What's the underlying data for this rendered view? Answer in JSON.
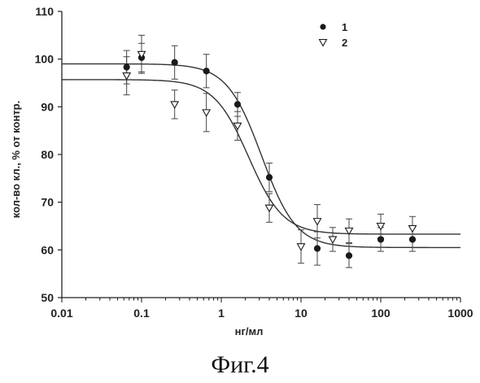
{
  "caption": "Фиг.4",
  "chart_data": {
    "type": "scatter",
    "title": "",
    "xlabel": "нг/мл",
    "ylabel": "кол-во кл., % от контр.",
    "xscale": "log",
    "xlim": [
      0.01,
      1000
    ],
    "ylim": [
      50,
      110
    ],
    "xticks": [
      0.01,
      0.1,
      1,
      10,
      100,
      1000
    ],
    "xtick_labels": [
      "0.01",
      "0.1",
      "1",
      "10",
      "100",
      "1000"
    ],
    "yticks": [
      50,
      60,
      70,
      80,
      90,
      100,
      110
    ],
    "ytick_labels": [
      "50",
      "60",
      "70",
      "80",
      "90",
      "100",
      "110"
    ],
    "grid": false,
    "legend_position": "top-right",
    "series": [
      {
        "name": "1",
        "marker": "filled-circle",
        "color": "#1a1a1a",
        "x": [
          0.065,
          0.1,
          0.26,
          0.65,
          1.6,
          4.0,
          16,
          40,
          100,
          250
        ],
        "y": [
          98.3,
          100.3,
          99.3,
          97.5,
          90.5,
          75.2,
          60.3,
          58.8,
          62.2,
          62.2
        ],
        "err": [
          3.5,
          3.0,
          3.5,
          3.5,
          2.5,
          3.0,
          3.5,
          2.5,
          2.5,
          2.5
        ],
        "fit": {
          "model": "sigmoid-log",
          "top": 99.0,
          "bottom": 60.5,
          "ec50": 3.2,
          "hill": 2.0
        }
      },
      {
        "name": "2",
        "marker": "open-triangle-down",
        "color": "#1a1a1a",
        "x": [
          0.065,
          0.1,
          0.26,
          0.65,
          1.6,
          4.0,
          10,
          16,
          25,
          40,
          100,
          250
        ],
        "y": [
          96.5,
          101.0,
          90.5,
          88.8,
          86.0,
          68.8,
          60.7,
          66.0,
          62.2,
          64.0,
          65.0,
          64.5
        ],
        "err": [
          4.0,
          4.0,
          3.0,
          4.0,
          3.0,
          3.0,
          3.5,
          3.5,
          2.5,
          2.5,
          2.5,
          2.5
        ],
        "fit": {
          "model": "sigmoid-log",
          "top": 95.7,
          "bottom": 63.3,
          "ec50": 2.2,
          "hill": 2.0
        }
      }
    ]
  }
}
